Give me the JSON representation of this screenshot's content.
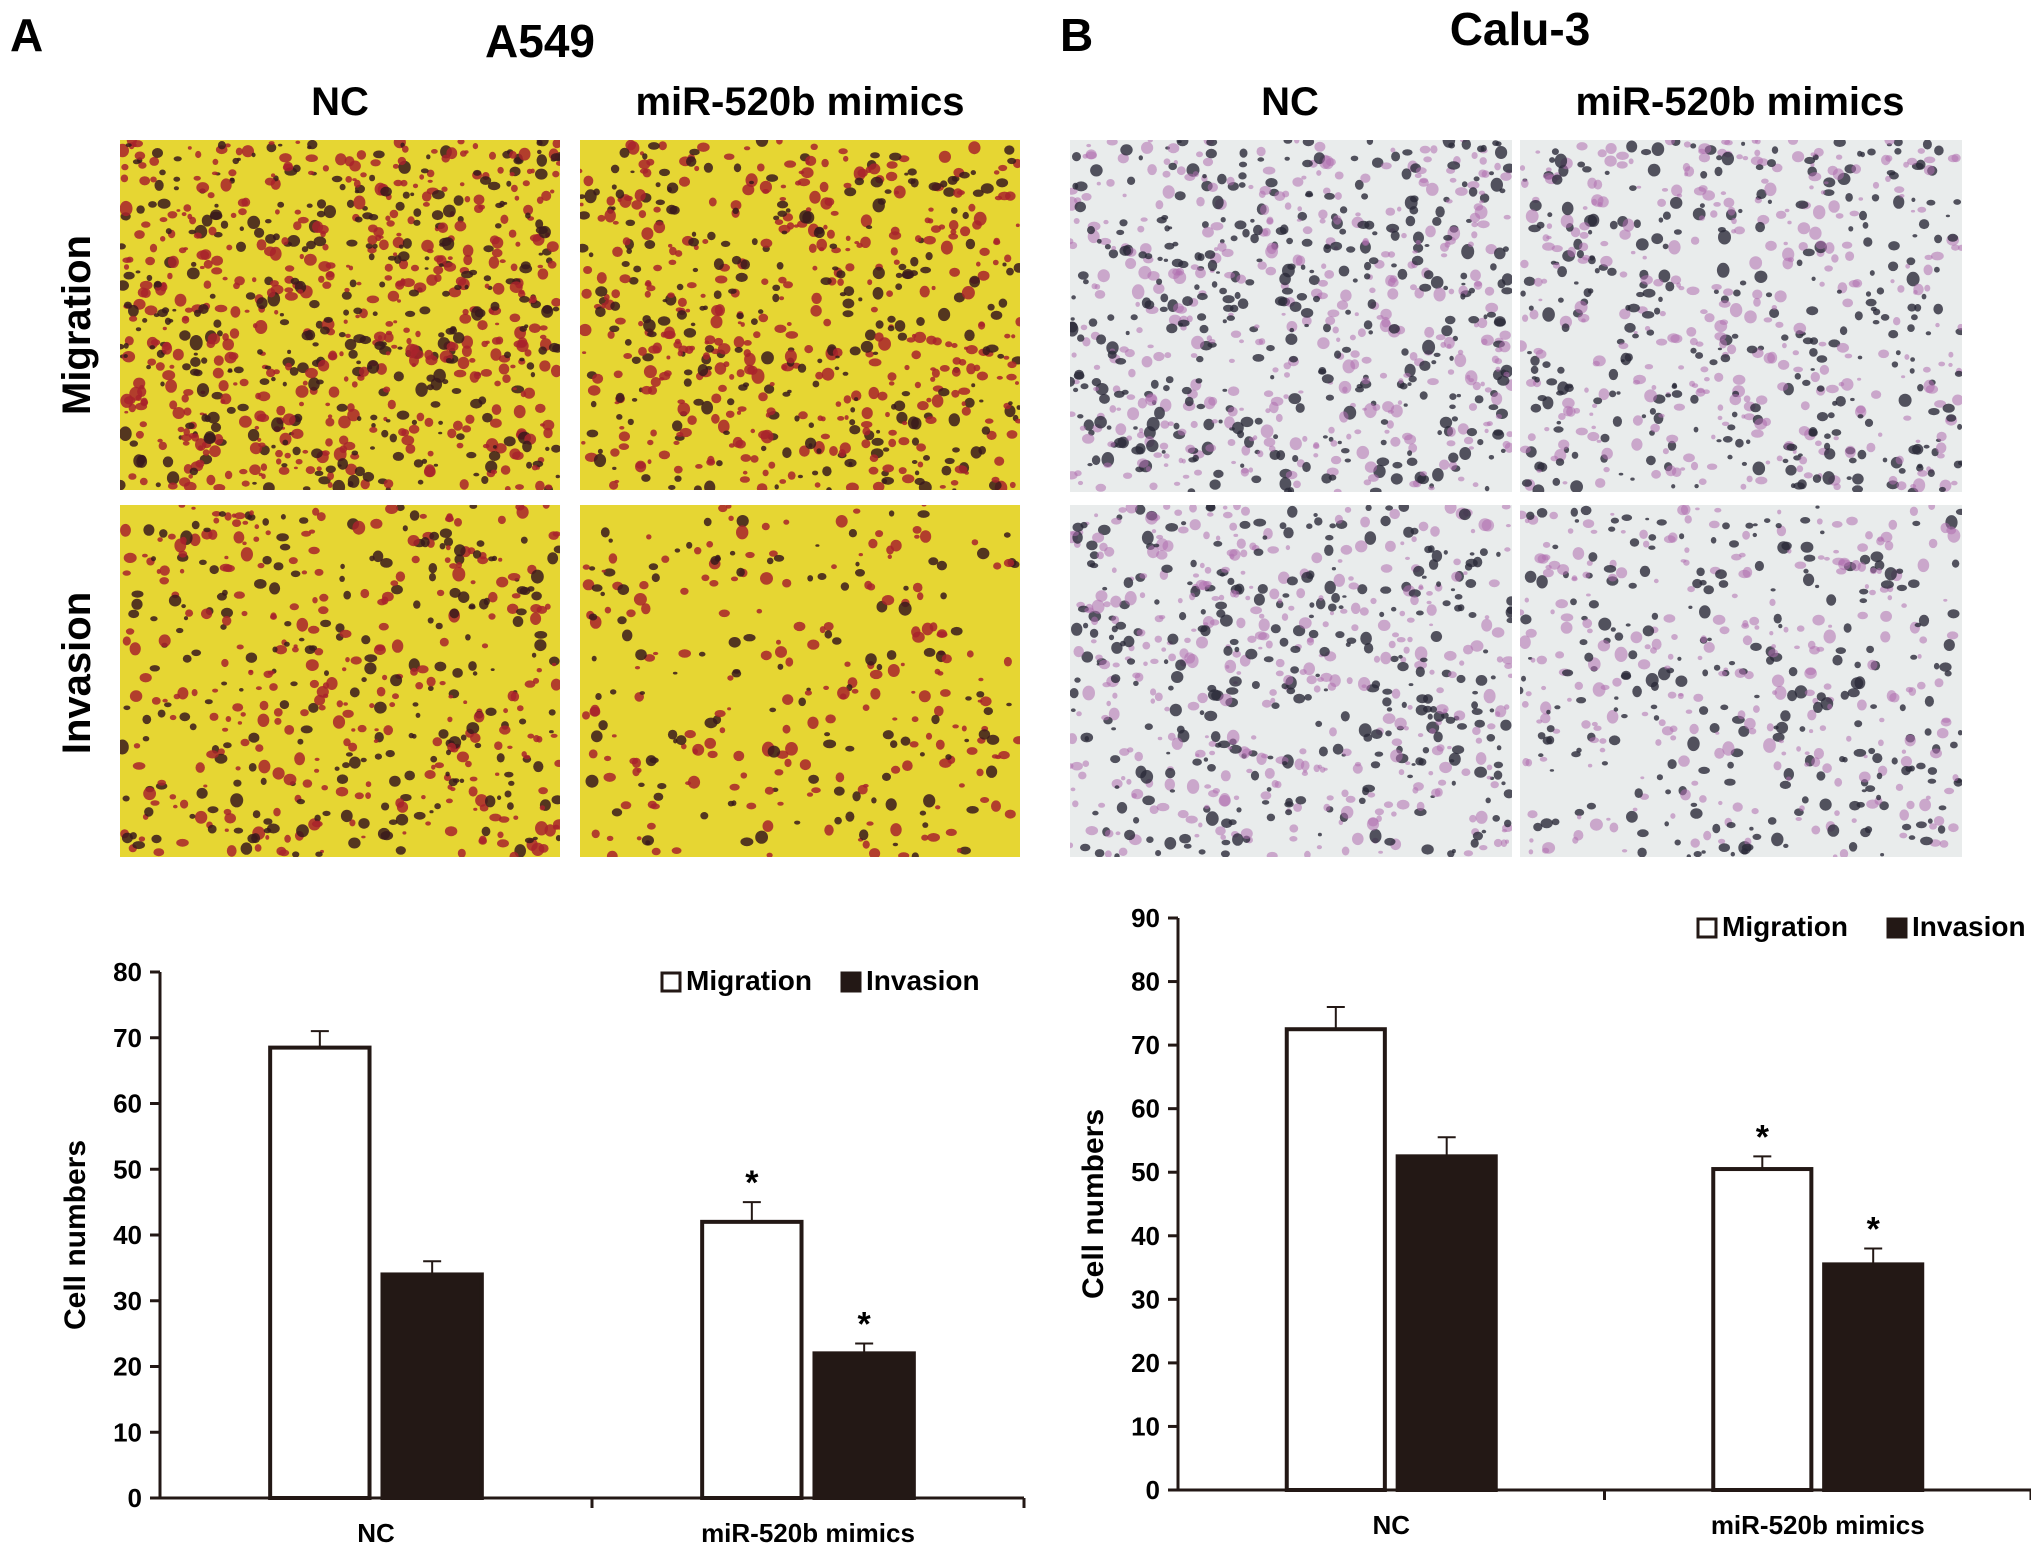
{
  "panel_a": {
    "letter": "A",
    "title": "A549",
    "columns": [
      "NC",
      "miR-520b mimics"
    ],
    "rows": [
      "Migration",
      "Invasion"
    ],
    "image_style": "yellow background with red/dark stained cells"
  },
  "panel_b": {
    "letter": "B",
    "title": "Calu-3",
    "columns": [
      "NC",
      "miR-520b mimics"
    ],
    "rows": [
      "Migration",
      "Invasion"
    ],
    "image_style": "pale grey background with purple stained cells"
  },
  "colors": {
    "bar_fill_migration": "#ffffff",
    "bar_fill_invasion": "#231815",
    "bar_stroke": "#231815",
    "a549_bg": "#e6d633",
    "a549_cell": "#a8232c",
    "a549_dark": "#3a1a1c",
    "calu3_bg": "#e9ecec",
    "calu3_cell": "#b070b0",
    "calu3_dark": "#2b2b3a"
  },
  "chart_data": [
    {
      "type": "bar",
      "title": "",
      "xlabel": "",
      "ylabel": "Cell numbers",
      "ylim": [
        0,
        80
      ],
      "yticks": [
        0,
        10,
        20,
        30,
        40,
        50,
        60,
        70,
        80
      ],
      "categories": [
        "NC",
        "miR-520b mimics"
      ],
      "legend_position": "top-right",
      "series": [
        {
          "name": "Migration",
          "values": [
            68.5,
            42
          ],
          "errors": [
            2.5,
            3
          ],
          "significance": [
            "",
            "*"
          ]
        },
        {
          "name": "Invasion",
          "values": [
            34,
            22
          ],
          "errors": [
            2,
            1.5
          ],
          "significance": [
            "",
            "*"
          ]
        }
      ]
    },
    {
      "type": "bar",
      "title": "",
      "xlabel": "",
      "ylabel": "Cell numbers",
      "ylim": [
        0,
        90
      ],
      "yticks": [
        0,
        10,
        20,
        30,
        40,
        50,
        60,
        70,
        80,
        90
      ],
      "categories": [
        "NC",
        "miR-520b mimics"
      ],
      "legend_position": "top-right",
      "series": [
        {
          "name": "Migration",
          "values": [
            72.5,
            50.5
          ],
          "errors": [
            3.5,
            2
          ],
          "significance": [
            "",
            "*"
          ]
        },
        {
          "name": "Invasion",
          "values": [
            52.5,
            35.5
          ],
          "errors": [
            3,
            2.5
          ],
          "significance": [
            "",
            "*"
          ]
        }
      ]
    }
  ]
}
